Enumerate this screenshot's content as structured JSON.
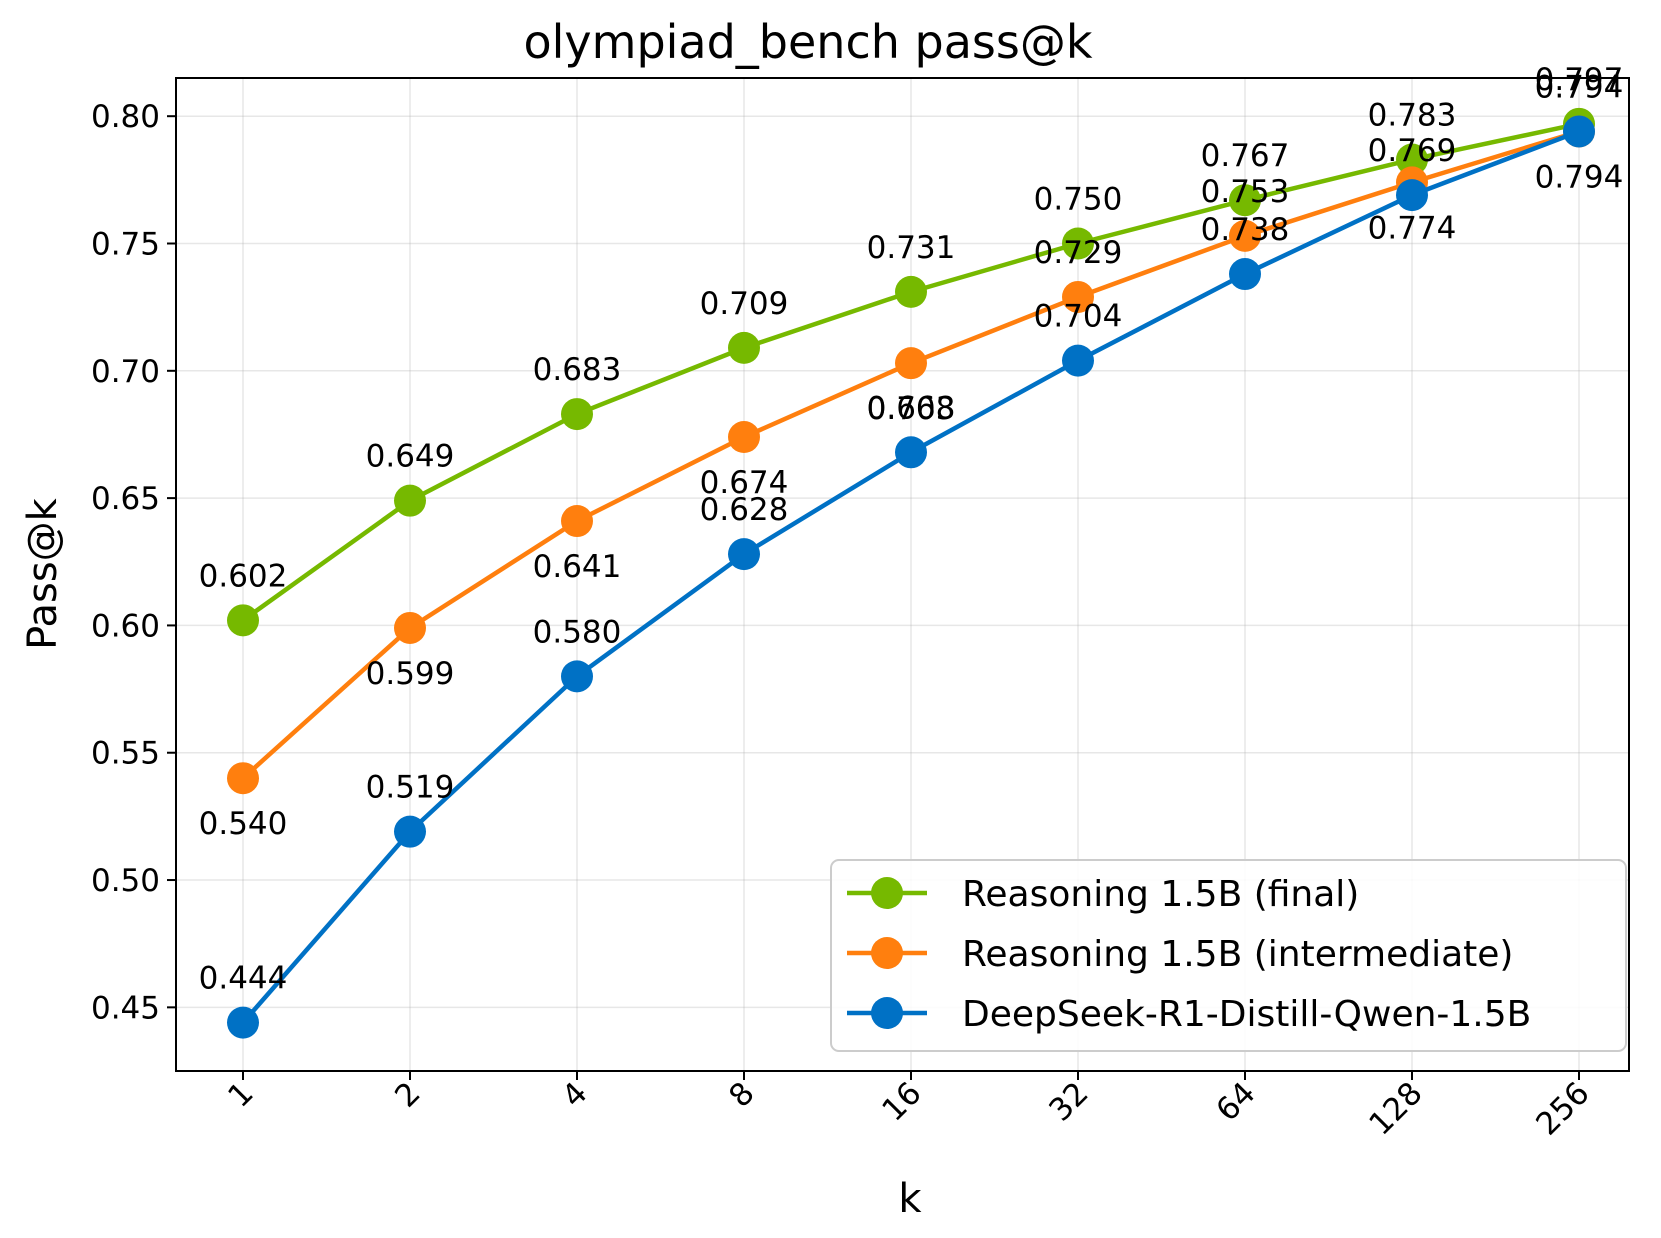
{
  "chart_data": {
    "type": "line",
    "title": "olympiad_bench pass@k",
    "xlabel": "k",
    "ylabel": "Pass@k",
    "categories": [
      "1",
      "2",
      "4",
      "8",
      "16",
      "32",
      "64",
      "128",
      "256"
    ],
    "yticks": [
      "0.45",
      "0.50",
      "0.55",
      "0.60",
      "0.65",
      "0.70",
      "0.75",
      "0.80"
    ],
    "ylim": [
      0.425,
      0.815
    ],
    "grid": true,
    "legend_position": "bottom-right",
    "series": [
      {
        "name": "Reasoning 1.5B (final)",
        "color": "#76b900",
        "values": [
          0.602,
          0.649,
          0.683,
          0.709,
          0.731,
          0.75,
          0.767,
          0.783,
          0.797
        ],
        "labels": [
          "0.602",
          "0.649",
          "0.683",
          "0.709",
          "0.731",
          "0.750",
          "0.767",
          "0.783",
          "0.797"
        ],
        "label_side": [
          "above",
          "above",
          "above",
          "above",
          "above",
          "above",
          "above",
          "above",
          "above"
        ]
      },
      {
        "name": "Reasoning 1.5B (intermediate)",
        "color": "#ff7f0e",
        "values": [
          0.54,
          0.599,
          0.641,
          0.674,
          0.703,
          0.729,
          0.753,
          0.774,
          0.794
        ],
        "labels": [
          "0.540",
          "0.599",
          "0.641",
          "0.674",
          "0.703",
          "0.729",
          "0.753",
          "0.774",
          "0.794"
        ],
        "label_side": [
          "below",
          "below",
          "below",
          "below",
          "below",
          "above",
          "above",
          "below",
          "below"
        ]
      },
      {
        "name": "DeepSeek-R1-Distill-Qwen-1.5B",
        "color": "#0071c5",
        "values": [
          0.444,
          0.519,
          0.58,
          0.628,
          0.668,
          0.704,
          0.738,
          0.769,
          0.794
        ],
        "labels": [
          "0.444",
          "0.519",
          "0.580",
          "0.628",
          "0.668",
          "0.704",
          "0.738",
          "0.769",
          "0.794"
        ],
        "label_side": [
          "above",
          "above",
          "above",
          "above",
          "above",
          "above",
          "above",
          "above",
          "above"
        ]
      }
    ]
  }
}
